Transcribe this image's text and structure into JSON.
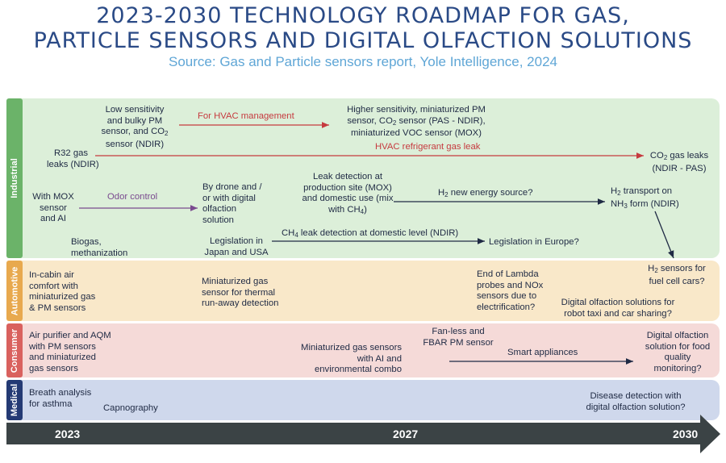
{
  "header": {
    "title_line1": "2023-2030 TECHNOLOGY ROADMAP FOR GAS,",
    "title_line2": "PARTICLE SENSORS AND DIGITAL OLFACTION SOLUTIONS",
    "subtitle": "Source: Gas and Particle sensors report, Yole Intelligence, 2024"
  },
  "colors": {
    "industrial_band": "#dcefd9",
    "industrial_tab": "#6bb369",
    "automotive_band": "#f9e8c9",
    "automotive_tab": "#e8a94e",
    "consumer_band": "#f5dad8",
    "consumer_tab": "#d9615e",
    "medical_band": "#cfd8ec",
    "medical_tab": "#243a74",
    "red_arrow": "#c63a3f",
    "purple_arrow": "#7a4a8f",
    "navy_arrow": "#1f2a44"
  },
  "sectors": {
    "industrial": "Industrial",
    "automotive": "Automotive",
    "consumer": "Consumer",
    "medical": "Medical"
  },
  "industrial": {
    "low_sens": [
      "Low sensitivity",
      "and bulky PM",
      "sensor, and CO",
      "sensor (NDIR)"
    ],
    "for_hvac": "For HVAC management",
    "higher_sens": [
      "Higher sensitivity,  miniaturized PM",
      "sensor, CO",
      " sensor (PAS - NDIR),",
      "miniaturized VOC sensor (MOX)"
    ],
    "r32": [
      "R32 gas",
      "leaks (NDIR)"
    ],
    "hvac_leak": "HVAC refrigerant gas leak",
    "co2_leaks": [
      "CO",
      " gas leaks",
      "(NDIR - PAS)"
    ],
    "mox": [
      "With MOX",
      "sensor",
      "and AI"
    ],
    "odor": "Odor control",
    "drone": [
      "By drone and /",
      "or with digital",
      "olfaction",
      "solution"
    ],
    "leak_detect": [
      "Leak detection at",
      "production site (MOX)",
      "and domestic use (mix",
      "with CH",
      ")"
    ],
    "h2_energy": [
      "H",
      " new energy source?"
    ],
    "h2_transport": [
      "H",
      " transport on",
      "NH",
      " form (NDIR)"
    ],
    "biogas": [
      "Biogas,",
      "methanization"
    ],
    "legislation_jp": [
      "Legislation in",
      "Japan and USA"
    ],
    "ch4_leak": [
      "CH",
      " leak detection at domestic level (NDIR)"
    ],
    "legislation_eu": "Legislation in Europe?"
  },
  "automotive": {
    "cabin": [
      "In-cabin air",
      "comfort with",
      "miniaturized gas",
      "& PM sensors"
    ],
    "runaway": [
      "Miniaturized gas",
      "sensor for thermal",
      "run-away detection"
    ],
    "lambda": [
      "End of Lambda",
      "probes and  NOx",
      "sensors due to",
      "electrification?"
    ],
    "h2_sensors": [
      "H",
      " sensors for",
      "fuel cell cars?"
    ],
    "robotaxi": [
      "Digital olfaction solutions for",
      "robot taxi and car sharing?"
    ]
  },
  "consumer": {
    "purifier": [
      "Air purifier and AQM",
      "with PM sensors",
      "and miniaturized",
      "gas sensors"
    ],
    "ai_combo": [
      "Miniaturized gas sensors",
      "with AI and",
      "environmental combo"
    ],
    "fanless": [
      "Fan-less and",
      "FBAR PM sensor"
    ],
    "smart": "Smart appliances",
    "food": [
      "Digital olfaction",
      "solution for food",
      "quality",
      "monitoring?"
    ]
  },
  "medical": {
    "breath": [
      "Breath analysis",
      "for asthma"
    ],
    "capno": "Capnography",
    "disease": [
      "Disease detection with",
      "digital olfaction solution?"
    ]
  },
  "timeline": {
    "years": [
      "2023",
      "2027",
      "2030"
    ]
  }
}
